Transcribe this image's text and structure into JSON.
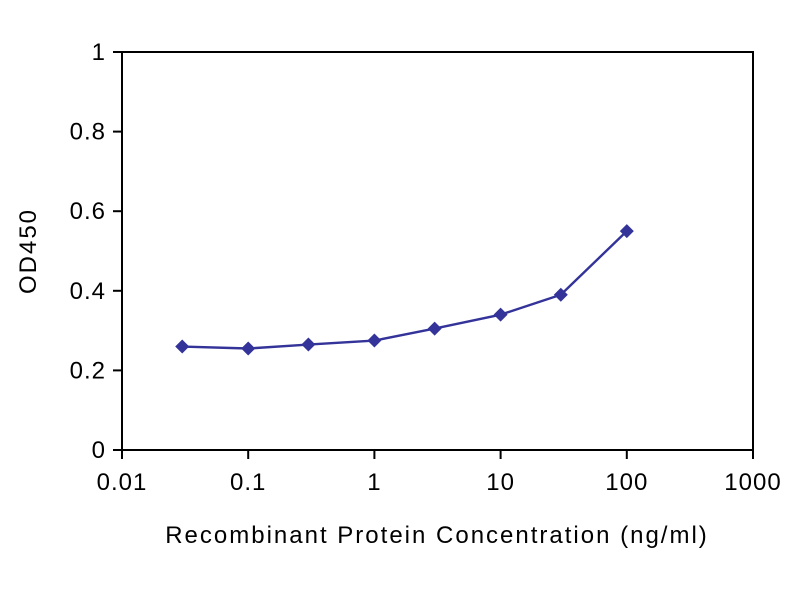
{
  "chart_data": {
    "type": "line",
    "title": "",
    "xlabel": "Recombinant Protein Concentration (ng/ml)",
    "ylabel": "OD450",
    "x_scale": "log",
    "y_scale": "linear",
    "xlim": [
      0.01,
      1000
    ],
    "ylim": [
      0,
      1
    ],
    "x_ticks": [
      {
        "v": 0.01,
        "label": "0.01"
      },
      {
        "v": 0.1,
        "label": "0.1"
      },
      {
        "v": 1,
        "label": "1"
      },
      {
        "v": 10,
        "label": "10"
      },
      {
        "v": 100,
        "label": "100"
      },
      {
        "v": 1000,
        "label": "1000"
      }
    ],
    "y_ticks": [
      {
        "v": 0,
        "label": "0"
      },
      {
        "v": 0.2,
        "label": "0.2"
      },
      {
        "v": 0.4,
        "label": "0.4"
      },
      {
        "v": 0.6,
        "label": "0.6"
      },
      {
        "v": 0.8,
        "label": "0.8"
      },
      {
        "v": 1,
        "label": "1"
      }
    ],
    "grid": false,
    "legend": "none",
    "background_color": "#ffffff",
    "axis_color": "#000000",
    "series": [
      {
        "line_color": "#333399",
        "marker": "diamond",
        "x": [
          0.03,
          0.1,
          0.3,
          1,
          3,
          10,
          30,
          100
        ],
        "y": [
          0.26,
          0.255,
          0.265,
          0.275,
          0.305,
          0.34,
          0.39,
          0.55
        ]
      }
    ]
  }
}
